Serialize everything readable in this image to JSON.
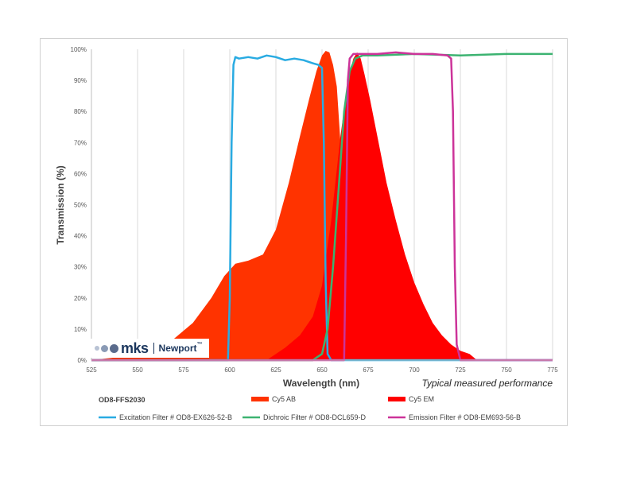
{
  "chart_data": {
    "type": "area",
    "title": "",
    "xlabel": "Wavelength (nm)",
    "ylabel": "Transmission (%)",
    "xlim": [
      525,
      775
    ],
    "ylim": [
      0,
      100
    ],
    "x_ticks": [
      525,
      550,
      575,
      600,
      625,
      650,
      675,
      700,
      725,
      750,
      775
    ],
    "y_ticks": [
      "0%",
      "10%",
      "20%",
      "30%",
      "40%",
      "50%",
      "60%",
      "70%",
      "80%",
      "90%",
      "100%"
    ],
    "grid": "vertical",
    "annotation": "Typical measured performance",
    "legend_title": "OD8-FFS2030",
    "legend_position": "bottom",
    "series": [
      {
        "name": "Cy5 AB",
        "kind": "area",
        "color": "#ff3300",
        "x": [
          525,
          540,
          555,
          570,
          580,
          590,
          597,
          603,
          610,
          618,
          625,
          632,
          638,
          643,
          647,
          650,
          652,
          654,
          656,
          658,
          660,
          662,
          664,
          666
        ],
        "y": [
          0,
          1,
          3,
          7,
          12,
          20,
          27,
          31,
          32,
          34,
          42,
          57,
          72,
          84,
          93,
          98,
          99.5,
          99,
          95,
          88,
          70,
          40,
          12,
          0
        ]
      },
      {
        "name": "Cy5 EM",
        "kind": "area",
        "color": "#ff0000",
        "x": [
          620,
          630,
          638,
          645,
          650,
          655,
          660,
          664,
          667,
          669,
          671,
          673,
          676,
          680,
          685,
          690,
          695,
          700,
          705,
          710,
          715,
          720,
          725,
          730,
          734
        ],
        "y": [
          0,
          4,
          8,
          14,
          24,
          45,
          72,
          90,
          97,
          99,
          97,
          92,
          84,
          72,
          57,
          45,
          34,
          25,
          18,
          12,
          8,
          5,
          3,
          2,
          0
        ]
      },
      {
        "name": "Excitation Filter # OD8-EX626-52-B",
        "kind": "line",
        "color": "#29abe2",
        "x": [
          525,
          599,
          600,
          601,
          602,
          603,
          605,
          610,
          615,
          620,
          625,
          630,
          635,
          640,
          645,
          648,
          650,
          651,
          652,
          653,
          655,
          775
        ],
        "y": [
          0,
          0,
          20,
          70,
          95,
          97.5,
          97,
          97.5,
          97,
          98,
          97.5,
          96.5,
          97,
          96.5,
          95.5,
          95,
          94,
          70,
          25,
          2,
          0,
          0
        ]
      },
      {
        "name": "Dichroic Filter # OD8-DCL659-D",
        "kind": "line",
        "color": "#3cb371",
        "x": [
          525,
          645,
          650,
          653,
          656,
          659,
          662,
          665,
          668,
          672,
          680,
          700,
          725,
          750,
          775
        ],
        "y": [
          0,
          0,
          2,
          10,
          30,
          55,
          80,
          93,
          97,
          98,
          98,
          98.5,
          98,
          98.5,
          98.5
        ]
      },
      {
        "name": "Emission Filter # OD8-EM693-56-B",
        "kind": "line",
        "color": "#cc3399",
        "x": [
          525,
          662,
          663,
          664,
          665,
          667,
          670,
          680,
          690,
          700,
          710,
          718,
          720,
          721,
          722,
          723,
          725,
          775
        ],
        "y": [
          0,
          0,
          40,
          90,
          97,
          98.5,
          98.5,
          98.5,
          99,
          98.5,
          98.5,
          98,
          97,
          80,
          30,
          5,
          0,
          0
        ]
      }
    ]
  },
  "logo": {
    "brand": "mks",
    "sub": "Newport",
    "trademark": "™"
  }
}
